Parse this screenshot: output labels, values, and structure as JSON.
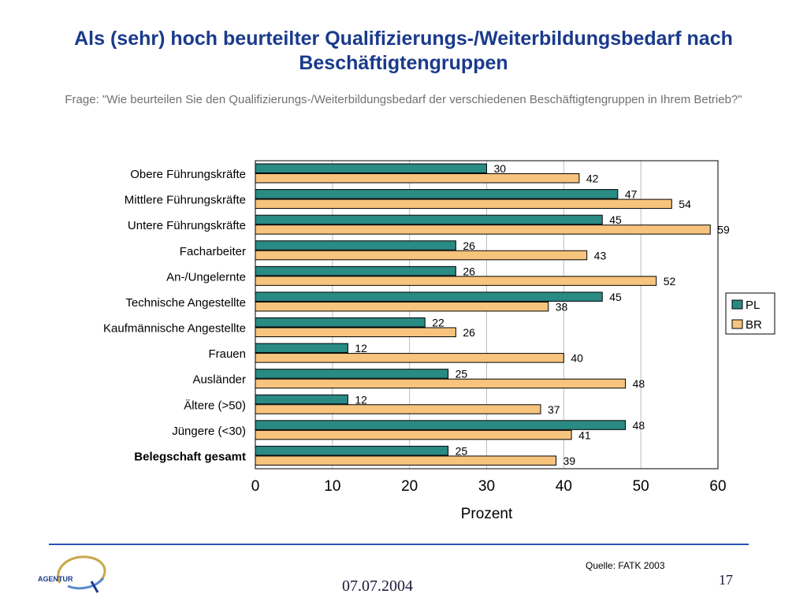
{
  "title": "Als (sehr) hoch beurteilter Qualifizierungs-/Weiterbildungsbedarf nach Beschäftigtengruppen",
  "subtitle": "Frage: \"Wie beurteilen Sie den Qualifizierungs-/Weiterbildungsbedarf der verschiedenen Beschäftigtengruppen in Ihrem Betrieb?\"",
  "footer": {
    "source": "Quelle: FATK 2003",
    "date": "07.07.2004",
    "page_number": "17",
    "logo_text": "AGENTUR"
  },
  "colors": {
    "title": "#1a3a8c",
    "PL": "#2a8a84",
    "BR": "#f7c47e",
    "footer_line": "#2b52b5"
  },
  "chart_data": {
    "type": "bar",
    "orientation": "horizontal",
    "categories": [
      "Obere Führungskräfte",
      "Mittlere Führungskräfte",
      "Untere Führungskräfte",
      "Facharbeiter",
      "An-/Ungelernte",
      "Technische  Angestellte",
      "Kaufmännische Angestellte",
      "Frauen",
      "Ausländer",
      "Ältere (>50)",
      "Jüngere (<30)",
      "Belegschaft gesamt"
    ],
    "series": [
      {
        "name": "PL",
        "values": [
          30,
          47,
          45,
          26,
          26,
          45,
          22,
          12,
          25,
          12,
          48,
          25
        ]
      },
      {
        "name": "BR",
        "values": [
          42,
          54,
          59,
          43,
          52,
          38,
          26,
          40,
          48,
          37,
          41,
          39
        ]
      }
    ],
    "xlabel": "Prozent",
    "xlim": [
      0,
      60
    ],
    "xticks": [
      0,
      10,
      20,
      30,
      40,
      50,
      60
    ],
    "grid": "vertical",
    "legend": "right",
    "bold_category": "Belegschaft gesamt"
  }
}
